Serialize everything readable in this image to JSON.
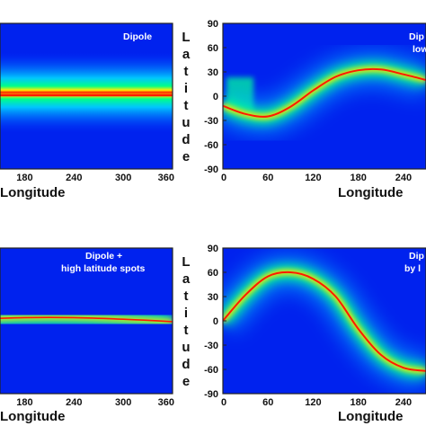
{
  "chart_data": [
    {
      "type": "heatmap",
      "annotation": [
        "Dipole"
      ],
      "xlabel": "Longitude",
      "ylabel": "",
      "xticks": [
        "180",
        "240",
        "300",
        "360"
      ],
      "yticks": [],
      "xlim": [
        0,
        360
      ],
      "ylim": [
        -90,
        90
      ],
      "ridge": {
        "longitude": [
          0,
          60,
          120,
          180,
          240,
          300,
          360
        ],
        "latitude": [
          3,
          3,
          3,
          3,
          3,
          3,
          3
        ]
      }
    },
    {
      "type": "heatmap",
      "annotation": [
        "Dip",
        "low"
      ],
      "xlabel": "Longitude",
      "ylabel": "Latitude",
      "xticks": [
        "0",
        "60",
        "120",
        "180",
        "240"
      ],
      "yticks": [
        "90",
        "60",
        "30",
        "0",
        "-30",
        "-60",
        "-90"
      ],
      "xlim": [
        0,
        270
      ],
      "ylim": [
        -90,
        90
      ],
      "ridge": {
        "longitude": [
          0,
          30,
          60,
          90,
          120,
          150,
          180,
          210,
          240,
          270
        ],
        "latitude": [
          -12,
          -22,
          -25,
          -13,
          7,
          24,
          32,
          33,
          27,
          20
        ]
      }
    },
    {
      "type": "heatmap",
      "annotation": [
        "Dipole +",
        "high latitude spots"
      ],
      "xlabel": "Longitude",
      "ylabel": "",
      "xticks": [
        "180",
        "240",
        "300",
        "360"
      ],
      "yticks": [],
      "xlim": [
        0,
        360
      ],
      "ylim": [
        -90,
        90
      ],
      "ridge": {
        "longitude": [
          0,
          60,
          120,
          180,
          240,
          300,
          360
        ],
        "latitude": [
          0,
          0,
          2,
          4,
          4,
          2,
          -1
        ]
      }
    },
    {
      "type": "heatmap",
      "annotation": [
        "Dip",
        "by l"
      ],
      "xlabel": "Longitude",
      "ylabel": "Latitude",
      "xticks": [
        "0",
        "60",
        "120",
        "180",
        "240"
      ],
      "yticks": [
        "90",
        "60",
        "30",
        "0",
        "-30",
        "-60",
        "-90"
      ],
      "xlim": [
        0,
        270
      ],
      "ylim": [
        -90,
        90
      ],
      "ridge": {
        "longitude": [
          0,
          30,
          60,
          90,
          120,
          150,
          180,
          210,
          240,
          270
        ],
        "latitude": [
          0,
          32,
          55,
          60,
          52,
          30,
          -10,
          -42,
          -58,
          -62
        ]
      }
    }
  ]
}
